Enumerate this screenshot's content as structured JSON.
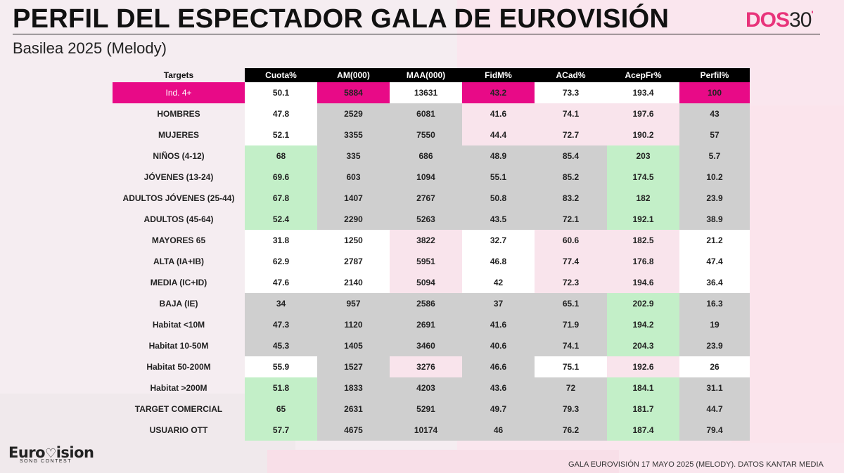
{
  "title": "PERFIL DEL ESPECTADOR GALA DE EUROVISIÓN",
  "subtitle": "Basilea 2025 (Melody)",
  "brand": {
    "part1": "DOS",
    "part2": "30",
    "part3": "'"
  },
  "table": {
    "headers": [
      "Targets",
      "Cuota%",
      "AM(000)",
      "MAA(000)",
      "FidM%",
      "ACad%",
      "AcepFr%",
      "Perfil%"
    ],
    "rows": [
      {
        "target": "Ind. 4+",
        "cuota": "50.1",
        "am": "5884",
        "maa": "13631",
        "fidm": "43.2",
        "acad": "73.3",
        "acepfr": "193.4",
        "perfil": "100"
      },
      {
        "target": "HOMBRES",
        "cuota": "47.8",
        "am": "2529",
        "maa": "6081",
        "fidm": "41.6",
        "acad": "74.1",
        "acepfr": "197.6",
        "perfil": "43"
      },
      {
        "target": "MUJERES",
        "cuota": "52.1",
        "am": "3355",
        "maa": "7550",
        "fidm": "44.4",
        "acad": "72.7",
        "acepfr": "190.2",
        "perfil": "57"
      },
      {
        "target": "NIÑOS (4-12)",
        "cuota": "68",
        "am": "335",
        "maa": "686",
        "fidm": "48.9",
        "acad": "85.4",
        "acepfr": "203",
        "perfil": "5.7"
      },
      {
        "target": "JÓVENES (13-24)",
        "cuota": "69.6",
        "am": "603",
        "maa": "1094",
        "fidm": "55.1",
        "acad": "85.2",
        "acepfr": "174.5",
        "perfil": "10.2"
      },
      {
        "target": "ADULTOS JÓVENES (25-44)",
        "cuota": "67.8",
        "am": "1407",
        "maa": "2767",
        "fidm": "50.8",
        "acad": "83.2",
        "acepfr": "182",
        "perfil": "23.9"
      },
      {
        "target": "ADULTOS (45-64)",
        "cuota": "52.4",
        "am": "2290",
        "maa": "5263",
        "fidm": "43.5",
        "acad": "72.1",
        "acepfr": "192.1",
        "perfil": "38.9"
      },
      {
        "target": "MAYORES 65",
        "cuota": "31.8",
        "am": "1250",
        "maa": "3822",
        "fidm": "32.7",
        "acad": "60.6",
        "acepfr": "182.5",
        "perfil": "21.2"
      },
      {
        "target": "ALTA (IA+IB)",
        "cuota": "62.9",
        "am": "2787",
        "maa": "5951",
        "fidm": "46.8",
        "acad": "77.4",
        "acepfr": "176.8",
        "perfil": "47.4"
      },
      {
        "target": "MEDIA (IC+ID)",
        "cuota": "47.6",
        "am": "2140",
        "maa": "5094",
        "fidm": "42",
        "acad": "72.3",
        "acepfr": "194.6",
        "perfil": "36.4"
      },
      {
        "target": "BAJA (IE)",
        "cuota": "34",
        "am": "957",
        "maa": "2586",
        "fidm": "37",
        "acad": "65.1",
        "acepfr": "202.9",
        "perfil": "16.3"
      },
      {
        "target": "Habitat <10M",
        "cuota": "47.3",
        "am": "1120",
        "maa": "2691",
        "fidm": "41.6",
        "acad": "71.9",
        "acepfr": "194.2",
        "perfil": "19"
      },
      {
        "target": "Habitat 10-50M",
        "cuota": "45.3",
        "am": "1405",
        "maa": "3460",
        "fidm": "40.6",
        "acad": "74.1",
        "acepfr": "204.3",
        "perfil": "23.9"
      },
      {
        "target": "Habitat 50-200M",
        "cuota": "55.9",
        "am": "1527",
        "maa": "3276",
        "fidm": "46.6",
        "acad": "75.1",
        "acepfr": "192.6",
        "perfil": "26"
      },
      {
        "target": "Habitat >200M",
        "cuota": "51.8",
        "am": "1833",
        "maa": "4203",
        "fidm": "43.6",
        "acad": "72",
        "acepfr": "184.1",
        "perfil": "31.1"
      },
      {
        "target": "TARGET COMERCIAL",
        "cuota": "65",
        "am": "2631",
        "maa": "5291",
        "fidm": "49.7",
        "acad": "79.3",
        "acepfr": "181.7",
        "perfil": "44.7"
      },
      {
        "target": "USUARIO OTT",
        "cuota": "57.7",
        "am": "4675",
        "maa": "10174",
        "fidm": "46",
        "acad": "76.2",
        "acepfr": "187.4",
        "perfil": "79.4"
      }
    ]
  },
  "logo": {
    "main_prefix": "Euro",
    "main_suffix": "ision",
    "sub": "SONG CONTEST"
  },
  "footer": "GALA EUROVISIÓN 17 MAYO 2025 (MELODY). DATOS KANTAR MEDIA",
  "colors": {
    "highlight": "#e80a87",
    "green_fill": "#c3efc8",
    "green_text": "#2a9a3e",
    "grey_fill": "#cfcfcf",
    "pink_fill": "#f9e4ec"
  }
}
